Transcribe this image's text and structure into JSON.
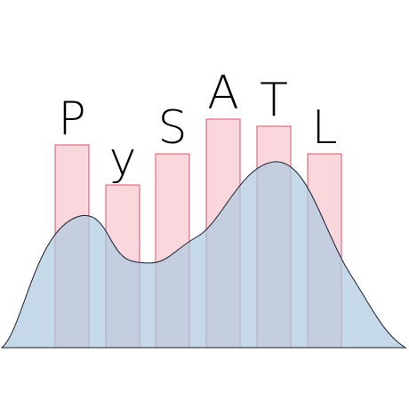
{
  "logo": {
    "letters": [
      "P",
      "y",
      "S",
      "A",
      "T",
      "L"
    ],
    "bar_heights": [
      228,
      183,
      218,
      257,
      249,
      218
    ],
    "colors": {
      "bar_fill": "#f9d7dc",
      "bar_stroke": "#cf5a6b",
      "curve_fill": "#aecbe0",
      "curve_stroke": "#1a1a2a",
      "letter_color": "#000000",
      "background": "#ffffff"
    }
  }
}
